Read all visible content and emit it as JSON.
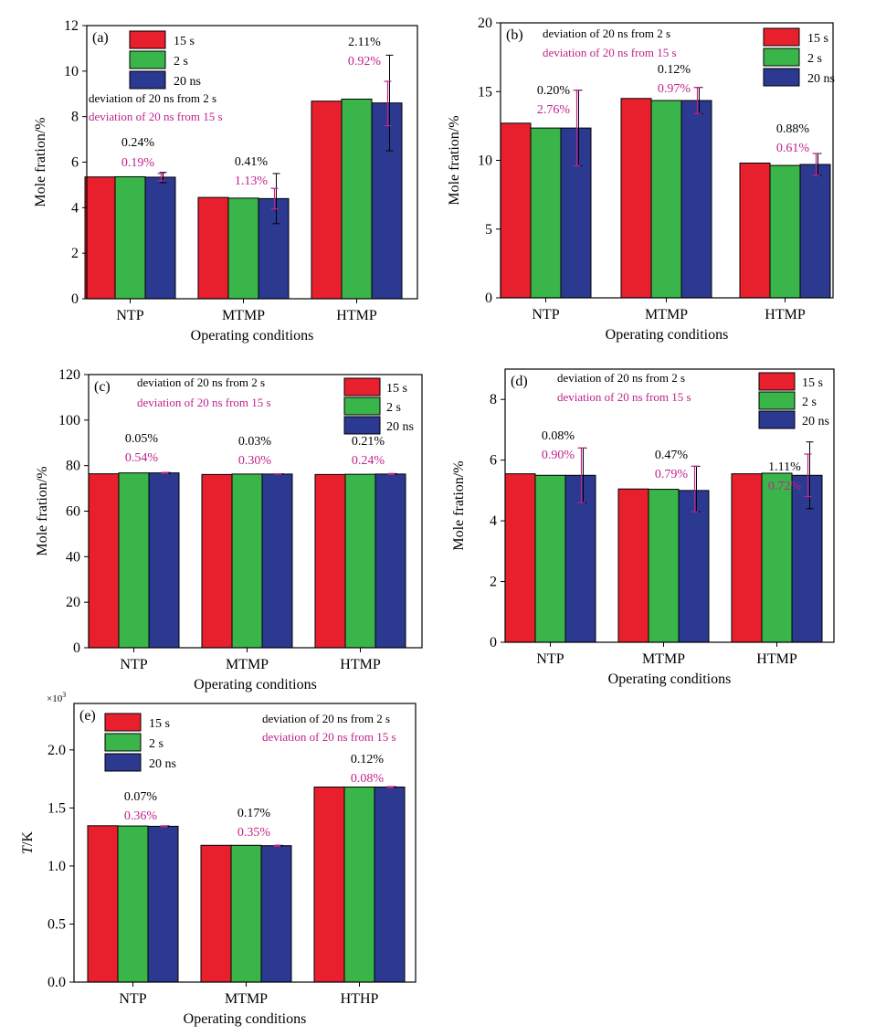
{
  "colors": {
    "s15": "#e8202d",
    "s2": "#3ab54a",
    "ns20": "#2b3990",
    "black_dev": "#000000",
    "magenta_dev": "#c0228c",
    "axis": "#000000"
  },
  "chart_data": [
    {
      "type": "bar",
      "panel_label": "(a)",
      "xlabel": "Operating conditions",
      "ylabel": "Mole fration/%",
      "ylim": [
        0,
        12
      ],
      "yticks": [
        0,
        2,
        4,
        6,
        8,
        10,
        12
      ],
      "tick_labels": [
        "0",
        "2",
        "4",
        "6",
        "8",
        "10",
        "12"
      ],
      "categories": [
        "NTP",
        "MTMP",
        "HTMP"
      ],
      "series": [
        {
          "name": "15 s",
          "values": [
            5.35,
            4.45,
            8.68
          ]
        },
        {
          "name": "2 s",
          "values": [
            5.36,
            4.42,
            8.77
          ]
        },
        {
          "name": "20 ns",
          "values": [
            5.34,
            4.4,
            8.6
          ]
        }
      ],
      "error_bars": {
        "from_2s": [
          [
            5.1,
            5.55
          ],
          [
            3.3,
            5.5
          ],
          [
            6.5,
            10.7
          ]
        ],
        "from_15s": [
          [
            5.18,
            5.5
          ],
          [
            3.95,
            4.85
          ],
          [
            7.6,
            9.55
          ]
        ]
      },
      "annotations": {
        "from_2s": [
          "0.24%",
          "0.41%",
          "2.11%"
        ],
        "from_15s": [
          "0.19%",
          "1.13%",
          "0.92%"
        ]
      },
      "legend": [
        "15 s",
        "2 s",
        "20 ns"
      ],
      "deviation_labels": [
        "deviation of 20 ns from 2 s",
        "deviation of 20 ns from 15 s"
      ]
    },
    {
      "type": "bar",
      "panel_label": "(b)",
      "xlabel": "Operating conditions",
      "ylabel": "Mole fration/%",
      "ylim": [
        0,
        20
      ],
      "yticks": [
        0,
        5,
        10,
        15,
        20
      ],
      "tick_labels": [
        "0",
        "5",
        "10",
        "15",
        "20"
      ],
      "categories": [
        "NTP",
        "MTMP",
        "HTMP"
      ],
      "series": [
        {
          "name": "15 s",
          "values": [
            12.7,
            14.5,
            9.8
          ]
        },
        {
          "name": "2 s",
          "values": [
            12.35,
            14.35,
            9.63
          ]
        },
        {
          "name": "20 ns",
          "values": [
            12.35,
            14.35,
            9.7
          ]
        }
      ],
      "error_bars": {
        "from_2s": [
          [
            9.6,
            15.1
          ],
          [
            13.4,
            15.3
          ],
          [
            8.9,
            10.5
          ]
        ],
        "from_15s": [
          [
            9.6,
            15.1
          ],
          [
            13.4,
            15.3
          ],
          [
            8.9,
            10.5
          ]
        ]
      },
      "annotations": {
        "from_2s": [
          "0.20%",
          "0.12%",
          "0.88%"
        ],
        "from_15s": [
          "2.76%",
          "0.97%",
          "0.61%"
        ]
      },
      "legend": [
        "15 s",
        "2 s",
        "20 ns"
      ],
      "deviation_labels": [
        "deviation of 20 ns from 2 s",
        "deviation of 20 ns from 15 s"
      ]
    },
    {
      "type": "bar",
      "panel_label": "(c)",
      "xlabel": "Operating conditions",
      "ylabel": "Mole fration/%",
      "ylim": [
        0,
        120
      ],
      "yticks": [
        0,
        20,
        40,
        60,
        80,
        100,
        120
      ],
      "tick_labels": [
        "0",
        "20",
        "40",
        "60",
        "80",
        "100",
        "120"
      ],
      "categories": [
        "NTP",
        "MTMP",
        "HTMP"
      ],
      "series": [
        {
          "name": "15 s",
          "values": [
            76.4,
            76.1,
            76.1
          ]
        },
        {
          "name": "2 s",
          "values": [
            76.8,
            76.3,
            76.2
          ]
        },
        {
          "name": "20 ns",
          "values": [
            76.8,
            76.3,
            76.3
          ]
        }
      ],
      "error_bars": {
        "from_2s": [
          [
            76.6,
            77.0
          ],
          [
            76.2,
            76.4
          ],
          [
            76.1,
            76.5
          ]
        ],
        "from_15s": [
          [
            76.6,
            77.0
          ],
          [
            76.2,
            76.4
          ],
          [
            76.1,
            76.5
          ]
        ]
      },
      "annotations": {
        "from_2s": [
          "0.05%",
          "0.03%",
          "0.21%"
        ],
        "from_15s": [
          "0.54%",
          "0.30%",
          "0.24%"
        ]
      },
      "legend": [
        "15 s",
        "2 s",
        "20 ns"
      ],
      "deviation_labels": [
        "deviation of 20 ns from 2 s",
        "deviation of 20 ns from 15 s"
      ]
    },
    {
      "type": "bar",
      "panel_label": "(d)",
      "xlabel": "Operating conditions",
      "ylabel": "Mole fration/%",
      "ylim": [
        0,
        9
      ],
      "yticks": [
        0,
        2,
        4,
        6,
        8
      ],
      "tick_labels": [
        "0",
        "2",
        "4",
        "6",
        "8"
      ],
      "categories": [
        "NTP",
        "MTMP",
        "HTMP"
      ],
      "series": [
        {
          "name": "15 s",
          "values": [
            5.55,
            5.05,
            5.55
          ]
        },
        {
          "name": "2 s",
          "values": [
            5.5,
            5.04,
            5.57
          ]
        },
        {
          "name": "20 ns",
          "values": [
            5.5,
            5.0,
            5.5
          ]
        }
      ],
      "error_bars": {
        "from_2s": [
          [
            4.6,
            6.4
          ],
          [
            4.3,
            5.8
          ],
          [
            4.4,
            6.6
          ]
        ],
        "from_15s": [
          [
            4.6,
            6.4
          ],
          [
            4.3,
            5.8
          ],
          [
            4.8,
            6.2
          ]
        ]
      },
      "annotations": {
        "from_2s": [
          "0.08%",
          "0.47%",
          "1.11%"
        ],
        "from_15s": [
          "0.90%",
          "0.79%",
          "0.72%"
        ]
      },
      "legend": [
        "15 s",
        "2 s",
        "20 ns"
      ],
      "deviation_labels": [
        "deviation of 20 ns from 2 s",
        "deviation of 20 ns from 15 s"
      ]
    },
    {
      "type": "bar",
      "panel_label": "(e)",
      "xlabel": "Operating conditions",
      "ylabel": "T/K",
      "ylabel_italic": "T",
      "ylabel_rest": "/K",
      "multiplier": "×10",
      "multiplier_exp": "3",
      "ylim": [
        0,
        2.4
      ],
      "yticks": [
        0,
        0.5,
        1.0,
        1.5,
        2.0
      ],
      "tick_labels": [
        "0.0",
        "0.5",
        "1.0",
        "1.5",
        "2.0"
      ],
      "categories": [
        "NTP",
        "MTMP",
        "HTHP"
      ],
      "series": [
        {
          "name": "15 s",
          "values": [
            1.347,
            1.178,
            1.68
          ]
        },
        {
          "name": "2 s",
          "values": [
            1.345,
            1.178,
            1.68
          ]
        },
        {
          "name": "20 ns",
          "values": [
            1.342,
            1.175,
            1.68
          ]
        }
      ],
      "error_bars": {
        "from_2s": [
          [
            1.338,
            1.346
          ],
          [
            1.17,
            1.178
          ],
          [
            1.676,
            1.684
          ]
        ],
        "from_15s": [
          [
            1.338,
            1.346
          ],
          [
            1.17,
            1.178
          ],
          [
            1.676,
            1.684
          ]
        ]
      },
      "annotations": {
        "from_2s": [
          "0.07%",
          "0.17%",
          "0.12%"
        ],
        "from_15s": [
          "0.36%",
          "0.35%",
          "0.08%"
        ]
      },
      "legend": [
        "15 s",
        "2 s",
        "20 ns"
      ],
      "deviation_labels": [
        "deviation of 20 ns from 2 s",
        "deviation of 20 ns from 15 s"
      ]
    }
  ]
}
